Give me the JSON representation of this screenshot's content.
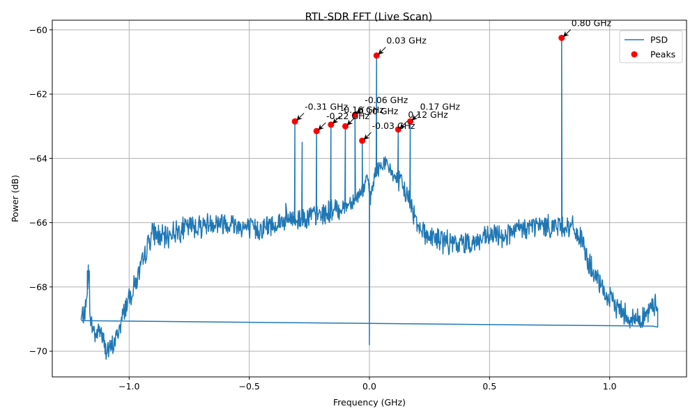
{
  "chart_data": {
    "type": "line",
    "title": "RTL-SDR FFT (Live Scan)",
    "xlabel": "Frequency (GHz)",
    "ylabel": "Power (dB)",
    "xlim": [
      -1.32,
      1.32
    ],
    "ylim": [
      -70.8,
      -59.7
    ],
    "xticks": [
      -1.0,
      -0.5,
      0.0,
      0.5,
      1.0
    ],
    "xtick_labels": [
      "−1.0",
      "−0.5",
      "0.0",
      "0.5",
      "1.0"
    ],
    "yticks": [
      -70,
      -68,
      -66,
      -64,
      -62,
      -60
    ],
    "ytick_labels": [
      "−70",
      "−68",
      "−66",
      "−64",
      "−62",
      "−60"
    ],
    "grid": true,
    "legend_position": "top-right",
    "colors": {
      "psd": "#1f77b4",
      "peaks": "#ff0000",
      "grid": "#b0b0b0"
    },
    "series": [
      {
        "name": "PSD",
        "kind": "line",
        "anchors": [
          [
            -1.2,
            -69.05
          ],
          [
            -1.18,
            -68.7
          ],
          [
            -1.17,
            -67.5
          ],
          [
            -1.16,
            -69.1
          ],
          [
            -1.14,
            -69.5
          ],
          [
            -1.12,
            -69.3
          ],
          [
            -1.1,
            -69.9
          ],
          [
            -1.08,
            -70.0
          ],
          [
            -1.06,
            -69.7
          ],
          [
            -1.04,
            -69.3
          ],
          [
            -1.02,
            -68.7
          ],
          [
            -1.0,
            -68.3
          ],
          [
            -0.98,
            -68.0
          ],
          [
            -0.96,
            -67.6
          ],
          [
            -0.94,
            -67.2
          ],
          [
            -0.92,
            -66.6
          ],
          [
            -0.9,
            -66.3
          ],
          [
            -0.88,
            -66.4
          ],
          [
            -0.85,
            -66.5
          ],
          [
            -0.82,
            -66.3
          ],
          [
            -0.78,
            -66.2
          ],
          [
            -0.74,
            -66.1
          ],
          [
            -0.7,
            -66.1
          ],
          [
            -0.66,
            -66.0
          ],
          [
            -0.62,
            -66.0
          ],
          [
            -0.58,
            -66.0
          ],
          [
            -0.54,
            -66.1
          ],
          [
            -0.5,
            -66.2
          ],
          [
            -0.46,
            -66.2
          ],
          [
            -0.42,
            -66.1
          ],
          [
            -0.38,
            -66.0
          ],
          [
            -0.34,
            -65.9
          ],
          [
            -0.3,
            -65.9
          ],
          [
            -0.26,
            -65.8
          ],
          [
            -0.22,
            -65.8
          ],
          [
            -0.18,
            -65.7
          ],
          [
            -0.14,
            -65.6
          ],
          [
            -0.1,
            -65.5
          ],
          [
            -0.07,
            -65.3
          ],
          [
            -0.05,
            -65.2
          ],
          [
            -0.03,
            -65.0
          ],
          [
            -0.02,
            -64.9
          ],
          [
            -0.01,
            -64.6
          ],
          [
            -0.003,
            -64.8
          ],
          [
            0.003,
            -65.3
          ],
          [
            0.01,
            -65.0
          ],
          [
            0.02,
            -64.6
          ],
          [
            0.04,
            -64.3
          ],
          [
            0.06,
            -64.1
          ],
          [
            0.08,
            -64.3
          ],
          [
            0.1,
            -64.5
          ],
          [
            0.12,
            -64.7
          ],
          [
            0.14,
            -64.9
          ],
          [
            0.16,
            -65.2
          ],
          [
            0.18,
            -65.6
          ],
          [
            0.2,
            -66.0
          ],
          [
            0.24,
            -66.4
          ],
          [
            0.28,
            -66.5
          ],
          [
            0.32,
            -66.6
          ],
          [
            0.36,
            -66.7
          ],
          [
            0.4,
            -66.6
          ],
          [
            0.44,
            -66.6
          ],
          [
            0.48,
            -66.5
          ],
          [
            0.52,
            -66.4
          ],
          [
            0.56,
            -66.4
          ],
          [
            0.6,
            -66.3
          ],
          [
            0.64,
            -66.2
          ],
          [
            0.68,
            -66.1
          ],
          [
            0.72,
            -66.1
          ],
          [
            0.76,
            -66.1
          ],
          [
            0.78,
            -66.1
          ],
          [
            0.82,
            -66.1
          ],
          [
            0.85,
            -66.2
          ],
          [
            0.88,
            -66.5
          ],
          [
            0.91,
            -67.2
          ],
          [
            0.94,
            -67.7
          ],
          [
            0.97,
            -68.1
          ],
          [
            1.0,
            -68.4
          ],
          [
            1.03,
            -68.6
          ],
          [
            1.06,
            -68.8
          ],
          [
            1.09,
            -69.0
          ],
          [
            1.12,
            -69.0
          ],
          [
            1.15,
            -68.9
          ],
          [
            1.18,
            -68.6
          ],
          [
            1.2,
            -68.5
          ]
        ],
        "spikes": [
          [
            -1.17,
            -67.45
          ],
          [
            -0.348,
            -65.4
          ],
          [
            -0.31,
            -62.85
          ],
          [
            -0.28,
            -63.5
          ],
          [
            -0.22,
            -63.15
          ],
          [
            -0.16,
            -62.95
          ],
          [
            -0.1,
            -63.0
          ],
          [
            -0.06,
            -62.65
          ],
          [
            -0.03,
            -63.45
          ],
          [
            0.03,
            -60.8
          ],
          [
            0.12,
            -63.1
          ],
          [
            0.17,
            -62.85
          ],
          [
            0.8,
            -60.25
          ]
        ],
        "center_dip": [
          0.0,
          -69.8
        ],
        "baseline_return": [
          [
            1.2,
            -69.25
          ],
          [
            1.18,
            -69.22
          ],
          [
            -1.2,
            -69.05
          ]
        ]
      },
      {
        "name": "Peaks",
        "kind": "scatter",
        "points": [
          [
            -0.31,
            -62.85
          ],
          [
            -0.22,
            -63.15
          ],
          [
            -0.16,
            -62.95
          ],
          [
            -0.1,
            -63.0
          ],
          [
            -0.06,
            -62.65
          ],
          [
            -0.03,
            -63.45
          ],
          [
            0.03,
            -60.8
          ],
          [
            0.12,
            -63.1
          ],
          [
            0.17,
            -62.85
          ],
          [
            0.8,
            -60.25
          ]
        ]
      }
    ],
    "annotations": [
      {
        "text": "-0.31 GHz",
        "x": -0.31,
        "y": -62.85
      },
      {
        "text": "-0.22 GHz",
        "x": -0.22,
        "y": -63.15
      },
      {
        "text": "-0.16 GHz",
        "x": -0.16,
        "y": -62.95
      },
      {
        "text": "-0.10 GHz",
        "x": -0.1,
        "y": -63.0
      },
      {
        "text": "-0.06 GHz",
        "x": -0.06,
        "y": -62.65
      },
      {
        "text": "-0.03 GHz",
        "x": -0.03,
        "y": -63.45
      },
      {
        "text": "0.03 GHz",
        "x": 0.03,
        "y": -60.8
      },
      {
        "text": "0.12 GHz",
        "x": 0.12,
        "y": -63.1
      },
      {
        "text": "0.17 GHz",
        "x": 0.17,
        "y": -62.85
      },
      {
        "text": "0.80 GHz",
        "x": 0.8,
        "y": -60.25
      }
    ],
    "legend": [
      {
        "label": "PSD",
        "marker": "line"
      },
      {
        "label": "Peaks",
        "marker": "dot"
      }
    ]
  }
}
